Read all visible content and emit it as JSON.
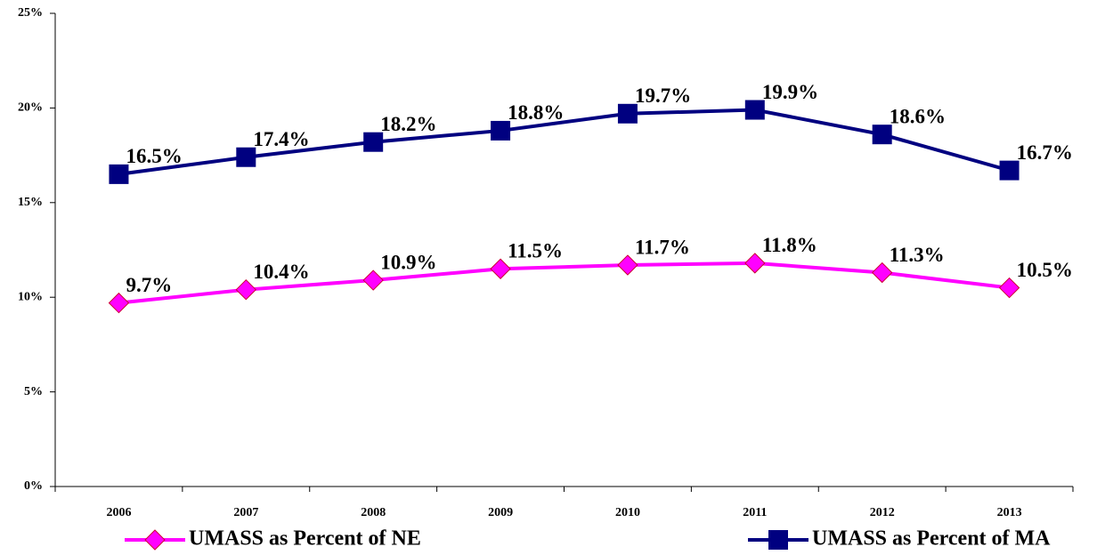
{
  "chart_data": {
    "type": "line",
    "categories": [
      "2006",
      "2007",
      "2008",
      "2009",
      "2010",
      "2011",
      "2012",
      "2013"
    ],
    "series": [
      {
        "name": "UMASS as Percent of NE",
        "color": "#ff00ff",
        "marker": "diamond",
        "values": [
          9.7,
          10.4,
          10.9,
          11.5,
          11.7,
          11.8,
          11.3,
          10.5
        ],
        "value_labels": [
          "9.7%",
          "10.4%",
          "10.9%",
          "11.5%",
          "11.7%",
          "11.8%",
          "11.3%",
          "10.5%"
        ]
      },
      {
        "name": "UMASS as Percent of MA",
        "color": "#000080",
        "marker": "square",
        "values": [
          16.5,
          17.4,
          18.2,
          18.8,
          19.7,
          19.9,
          18.6,
          16.7
        ],
        "value_labels": [
          "16.5%",
          "17.4%",
          "18.2%",
          "18.8%",
          "19.7%",
          "19.9%",
          "18.6%",
          "16.7%"
        ]
      }
    ],
    "ylim": [
      0,
      25
    ],
    "yticks": [
      {
        "value": 0,
        "label": "0%"
      },
      {
        "value": 5,
        "label": "5%"
      },
      {
        "value": 10,
        "label": "10%"
      },
      {
        "value": 15,
        "label": "15%"
      },
      {
        "value": 20,
        "label": "20%"
      },
      {
        "value": 25,
        "label": "25%"
      }
    ],
    "grid": false,
    "legend": "bottom"
  }
}
